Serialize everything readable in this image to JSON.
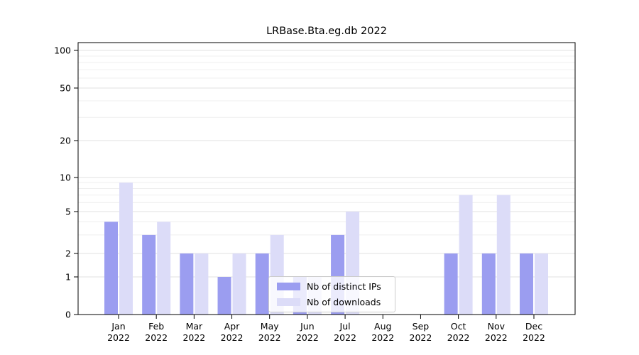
{
  "title": "LRBase.Bta.eg.db 2022",
  "colors": {
    "distinct_ips": "#9b9df0",
    "downloads": "#dcdcf8",
    "grid_major": "#e0e0e0",
    "grid_minor": "#efefef",
    "axis": "#000000",
    "legend_border": "#cccccc"
  },
  "legend": {
    "items": [
      {
        "label": "Nb of distinct IPs"
      },
      {
        "label": "Nb of downloads"
      }
    ]
  },
  "x_axis": {
    "year": "2022",
    "months": [
      "Jan",
      "Feb",
      "Mar",
      "Apr",
      "May",
      "Jun",
      "Jul",
      "Aug",
      "Sep",
      "Oct",
      "Nov",
      "Dec"
    ]
  },
  "y_axis": {
    "ticks": [
      0,
      1,
      2,
      5,
      10,
      20,
      50,
      100
    ]
  },
  "chart_data": {
    "type": "bar",
    "title": "LRBase.Bta.eg.db 2022",
    "categories": [
      "Jan 2022",
      "Feb 2022",
      "Mar 2022",
      "Apr 2022",
      "May 2022",
      "Jun 2022",
      "Jul 2022",
      "Aug 2022",
      "Sep 2022",
      "Oct 2022",
      "Nov 2022",
      "Dec 2022"
    ],
    "series": [
      {
        "name": "Nb of distinct IPs",
        "color": "#9b9df0",
        "values": [
          4,
          3,
          2,
          1,
          2,
          1,
          3,
          0,
          0,
          2,
          2,
          2
        ]
      },
      {
        "name": "Nb of downloads",
        "color": "#dcdcf8",
        "values": [
          9,
          4,
          2,
          2,
          3,
          1,
          5,
          0,
          0,
          7,
          7,
          2
        ]
      }
    ],
    "y_ticks": [
      0,
      1,
      2,
      5,
      10,
      20,
      50,
      100
    ],
    "ylim": [
      0,
      100
    ],
    "scale": "log-like",
    "grid": true,
    "legend_position": "bottom-center"
  }
}
